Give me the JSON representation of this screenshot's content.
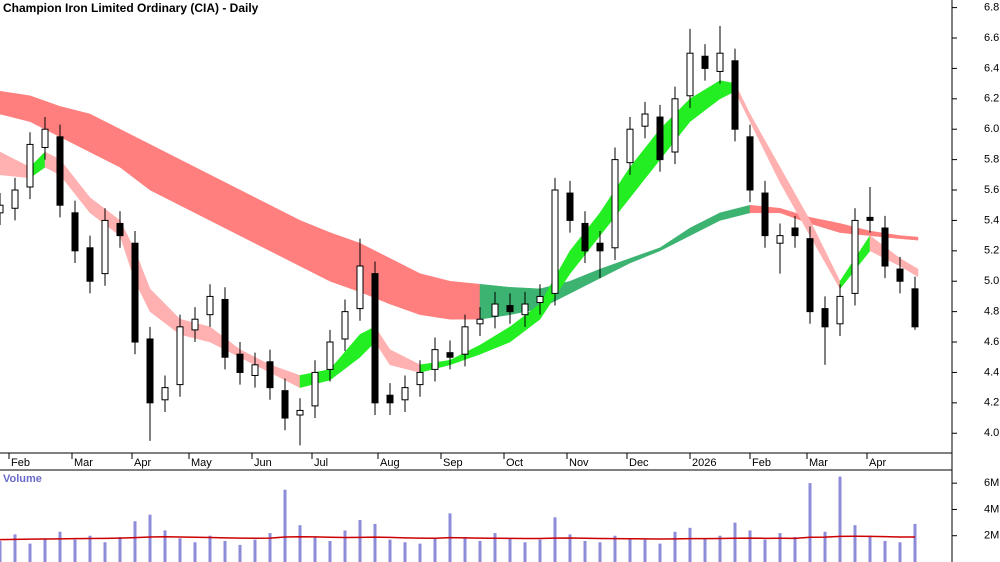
{
  "chart_data": {
    "type": "candlestick",
    "title": "Champion Iron Limited Ordinary (CIA) - Daily",
    "xlim": [
      0,
      317
    ],
    "xticks": [
      {
        "value": 3,
        "label": "Feb"
      },
      {
        "value": 24,
        "label": "Mar"
      },
      {
        "value": 44,
        "label": "Apr"
      },
      {
        "value": 63,
        "label": "May"
      },
      {
        "value": 84,
        "label": "Jun"
      },
      {
        "value": 104,
        "label": "Jul"
      },
      {
        "value": 126,
        "label": "Aug"
      },
      {
        "value": 147,
        "label": "Sep"
      },
      {
        "value": 168,
        "label": "Oct"
      },
      {
        "value": 189,
        "label": "Nov"
      },
      {
        "value": 209,
        "label": "Dec"
      },
      {
        "value": 230,
        "label": "2026"
      },
      {
        "value": 250,
        "label": "Feb"
      },
      {
        "value": 269,
        "label": "Mar"
      },
      {
        "value": 289,
        "label": "Apr"
      }
    ],
    "ylim": [
      3.87,
      6.85
    ],
    "yticks": [
      {
        "value": 4.0,
        "label": "4.0"
      },
      4.2,
      4.4,
      4.6,
      4.8,
      {
        "value": 5.0,
        "label": "5.0"
      },
      5.2,
      5.4,
      5.6,
      5.8,
      {
        "value": 6.0,
        "label": "6.0"
      },
      6.2,
      6.4,
      6.6,
      6.8
    ],
    "up_color": "#ffffff",
    "down_color": "#000000",
    "x": [
      0,
      5,
      10,
      15,
      20,
      25,
      30,
      35,
      40,
      45,
      50,
      55,
      60,
      65,
      70,
      75,
      80,
      85,
      90,
      95,
      100,
      105,
      110,
      115,
      120,
      125,
      130,
      135,
      140,
      145,
      150,
      155,
      160,
      165,
      170,
      175,
      180,
      185,
      190,
      195,
      200,
      205,
      210,
      215,
      220,
      225,
      230,
      235,
      240,
      245,
      250,
      255,
      260,
      265,
      270,
      275,
      280,
      285,
      290,
      295,
      300,
      305
    ],
    "open": [
      5.45,
      5.48,
      5.62,
      5.88,
      5.95,
      5.45,
      5.22,
      5.05,
      5.38,
      5.25,
      4.62,
      4.22,
      4.32,
      4.68,
      4.78,
      4.88,
      4.52,
      4.38,
      4.47,
      4.28,
      4.12,
      4.18,
      4.42,
      4.62,
      4.82,
      5.05,
      4.25,
      4.22,
      4.32,
      4.42,
      4.53,
      4.52,
      4.72,
      4.77,
      4.84,
      4.78,
      4.86,
      4.92,
      5.58,
      5.38,
      5.25,
      5.22,
      5.78,
      6.02,
      6.08,
      5.85,
      6.22,
      6.48,
      6.38,
      6.45,
      5.95,
      5.58,
      5.25,
      5.35,
      5.28,
      4.82,
      4.72,
      4.92,
      5.42,
      5.35,
      5.08,
      4.95
    ],
    "high": [
      5.58,
      5.68,
      5.98,
      6.08,
      6.03,
      5.53,
      5.3,
      5.48,
      5.46,
      5.33,
      4.7,
      4.38,
      4.78,
      4.83,
      4.98,
      4.96,
      4.6,
      4.53,
      4.55,
      4.36,
      4.23,
      4.48,
      4.68,
      4.88,
      5.28,
      5.13,
      4.33,
      4.38,
      4.48,
      4.63,
      4.61,
      4.78,
      4.83,
      4.93,
      4.92,
      4.93,
      4.98,
      5.68,
      5.66,
      5.46,
      5.33,
      5.88,
      6.08,
      6.18,
      6.16,
      6.28,
      6.66,
      6.56,
      6.68,
      6.53,
      6.03,
      5.66,
      5.38,
      5.43,
      5.36,
      4.9,
      4.98,
      5.48,
      5.62,
      5.43,
      5.16,
      5.03
    ],
    "low": [
      5.37,
      5.4,
      5.54,
      5.8,
      5.42,
      5.12,
      4.92,
      4.97,
      5.22,
      4.52,
      3.95,
      4.14,
      4.24,
      4.6,
      4.7,
      4.42,
      4.32,
      4.3,
      4.22,
      4.02,
      3.92,
      4.1,
      4.34,
      4.54,
      4.74,
      4.12,
      4.12,
      4.14,
      4.24,
      4.34,
      4.42,
      4.44,
      4.64,
      4.69,
      4.72,
      4.7,
      4.78,
      4.84,
      5.32,
      5.12,
      5.02,
      5.14,
      5.7,
      5.94,
      5.72,
      5.77,
      6.14,
      6.32,
      6.3,
      5.92,
      5.52,
      5.22,
      5.05,
      5.22,
      4.72,
      4.45,
      4.64,
      4.84,
      5.32,
      5.02,
      4.92,
      4.68
    ],
    "close": [
      5.5,
      5.6,
      5.9,
      6.0,
      5.5,
      5.2,
      5.0,
      5.4,
      5.3,
      4.6,
      4.2,
      4.3,
      4.7,
      4.75,
      4.9,
      4.5,
      4.4,
      4.45,
      4.3,
      4.1,
      4.15,
      4.4,
      4.6,
      4.8,
      5.1,
      4.2,
      4.2,
      4.3,
      4.4,
      4.55,
      4.5,
      4.7,
      4.75,
      4.85,
      4.8,
      4.85,
      4.9,
      5.6,
      5.4,
      5.2,
      5.2,
      5.8,
      6.0,
      6.1,
      5.8,
      6.2,
      6.5,
      6.4,
      6.5,
      6.0,
      5.6,
      5.3,
      5.3,
      5.3,
      4.8,
      4.7,
      4.9,
      5.4,
      5.4,
      5.1,
      5.0,
      4.7
    ],
    "bands": [
      {
        "x": [
          0,
          10,
          20,
          30,
          40,
          50,
          60,
          70,
          80,
          90,
          100,
          110,
          120,
          130,
          140,
          150,
          160,
          170,
          180,
          190,
          200,
          210,
          220,
          230,
          240,
          250,
          260,
          270,
          280,
          290,
          300,
          306
        ],
        "upper": [
          6.25,
          6.22,
          6.15,
          6.1,
          6.0,
          5.9,
          5.8,
          5.7,
          5.6,
          5.5,
          5.4,
          5.32,
          5.25,
          5.15,
          5.05,
          5.0,
          4.98,
          4.96,
          4.95,
          5.0,
          5.08,
          5.15,
          5.22,
          5.35,
          5.45,
          5.5,
          5.48,
          5.42,
          5.38,
          5.33,
          5.3,
          5.29
        ],
        "lower": [
          6.1,
          6.05,
          5.95,
          5.85,
          5.75,
          5.6,
          5.5,
          5.4,
          5.3,
          5.2,
          5.1,
          5.0,
          4.93,
          4.85,
          4.78,
          4.75,
          4.75,
          4.78,
          4.82,
          4.92,
          5.02,
          5.12,
          5.2,
          5.3,
          5.4,
          5.45,
          5.45,
          5.38,
          5.32,
          5.3,
          5.28,
          5.27
        ],
        "rising_color": "#3cb371",
        "falling_color": "#ff7f7f"
      },
      {
        "x": [
          0,
          10,
          15,
          20,
          30,
          40,
          45,
          50,
          60,
          70,
          80,
          90,
          100,
          110,
          120,
          125,
          130,
          140,
          150,
          160,
          170,
          180,
          190,
          200,
          210,
          220,
          230,
          240,
          245,
          250,
          260,
          270,
          280,
          290,
          300,
          306
        ],
        "upper": [
          5.85,
          5.75,
          5.85,
          5.8,
          5.55,
          5.4,
          5.2,
          4.95,
          4.75,
          4.7,
          4.55,
          4.45,
          4.38,
          4.42,
          4.65,
          4.7,
          4.55,
          4.45,
          4.48,
          4.58,
          4.7,
          4.85,
          5.2,
          5.45,
          5.75,
          6.0,
          6.2,
          6.32,
          6.3,
          6.1,
          5.75,
          5.4,
          5.0,
          5.3,
          5.15,
          5.08
        ],
        "lower": [
          5.7,
          5.68,
          5.75,
          5.7,
          5.45,
          5.3,
          5.0,
          4.8,
          4.65,
          4.6,
          4.5,
          4.4,
          4.3,
          4.35,
          4.5,
          4.6,
          4.45,
          4.4,
          4.45,
          4.52,
          4.6,
          4.75,
          5.05,
          5.3,
          5.55,
          5.8,
          6.05,
          6.2,
          6.25,
          6.05,
          5.65,
          5.3,
          4.95,
          5.2,
          5.1,
          5.03
        ],
        "rising_color": "#22ee22",
        "falling_color": "#ffb0b0"
      }
    ],
    "volume": {
      "label": "Volume",
      "ylim": [
        0,
        7000000
      ],
      "yticks": [
        {
          "value": 2000000,
          "label": "2M"
        },
        {
          "value": 4000000,
          "label": "4M"
        },
        {
          "value": 6000000,
          "label": "6M"
        }
      ],
      "color": "#8c8cd9",
      "values": [
        1600000,
        2100000,
        1400000,
        1800000,
        2300000,
        1700000,
        2000000,
        1500000,
        1900000,
        3100000,
        3600000,
        2400000,
        1800000,
        1500000,
        2000000,
        1600000,
        1300000,
        1700000,
        2200000,
        5500000,
        2800000,
        1900000,
        1600000,
        2400000,
        3200000,
        2900000,
        1700000,
        1500000,
        1400000,
        1800000,
        3700000,
        1900000,
        1600000,
        2200000,
        1800000,
        1500000,
        1700000,
        3400000,
        2100000,
        1600000,
        1500000,
        2000000,
        1800000,
        1700000,
        1400000,
        2300000,
        2600000,
        1800000,
        2000000,
        3000000,
        2400000,
        1700000,
        2200000,
        1900000,
        6000000,
        2300000,
        6500000,
        2800000,
        2000000,
        1600000,
        1500000,
        2900000
      ],
      "average": {
        "color": "#cc0000",
        "values": [
          1700000,
          1720000,
          1740000,
          1750000,
          1760000,
          1780000,
          1790000,
          1800000,
          1820000,
          1850000,
          1900000,
          1920000,
          1900000,
          1880000,
          1860000,
          1840000,
          1820000,
          1810000,
          1820000,
          1900000,
          1920000,
          1910000,
          1880000,
          1860000,
          1870000,
          1890000,
          1870000,
          1840000,
          1820000,
          1810000,
          1850000,
          1840000,
          1820000,
          1810000,
          1800000,
          1790000,
          1790000,
          1820000,
          1830000,
          1810000,
          1790000,
          1780000,
          1770000,
          1760000,
          1750000,
          1760000,
          1780000,
          1780000,
          1790000,
          1810000,
          1820000,
          1800000,
          1810000,
          1800000,
          1880000,
          1890000,
          1950000,
          1960000,
          1950000,
          1930000,
          1900000,
          1900000
        ]
      }
    }
  }
}
